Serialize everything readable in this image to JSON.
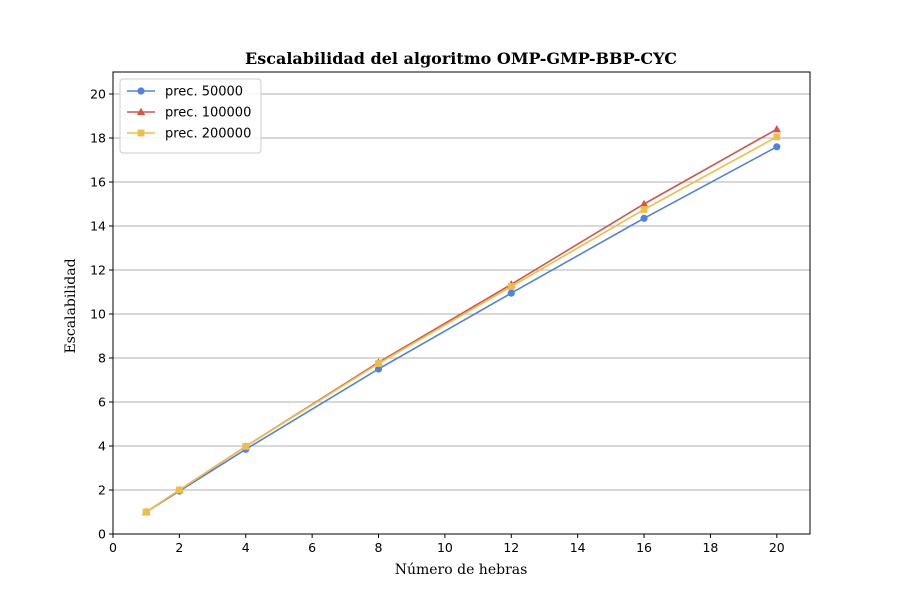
{
  "chart_data": {
    "type": "line",
    "title": "Escalabilidad del algoritmo OMP-GMP-BBP-CYC",
    "xlabel": "Número de hebras",
    "ylabel": "Escalabilidad",
    "xlim": [
      0,
      21
    ],
    "ylim": [
      0,
      21
    ],
    "xticks": [
      0,
      2,
      4,
      6,
      8,
      10,
      12,
      14,
      16,
      18,
      20
    ],
    "yticks": [
      0,
      2,
      4,
      6,
      8,
      10,
      12,
      14,
      16,
      18,
      20
    ],
    "grid": "horizontal",
    "legend_position": "top-left",
    "x": [
      1,
      2,
      4,
      8,
      12,
      16,
      20
    ],
    "series": [
      {
        "name": "prec. 50000",
        "color": "#4f82e6",
        "marker": "circle",
        "values": [
          1.0,
          1.95,
          3.85,
          7.5,
          10.95,
          14.35,
          17.6
        ]
      },
      {
        "name": "prec. 100000",
        "color": "#d9534a",
        "marker": "triangle",
        "values": [
          1.0,
          2.0,
          3.98,
          7.8,
          11.35,
          15.0,
          18.4
        ]
      },
      {
        "name": "prec. 200000",
        "color": "#f2be42",
        "marker": "square",
        "values": [
          1.0,
          2.0,
          3.98,
          7.75,
          11.25,
          14.75,
          18.05
        ]
      }
    ]
  }
}
